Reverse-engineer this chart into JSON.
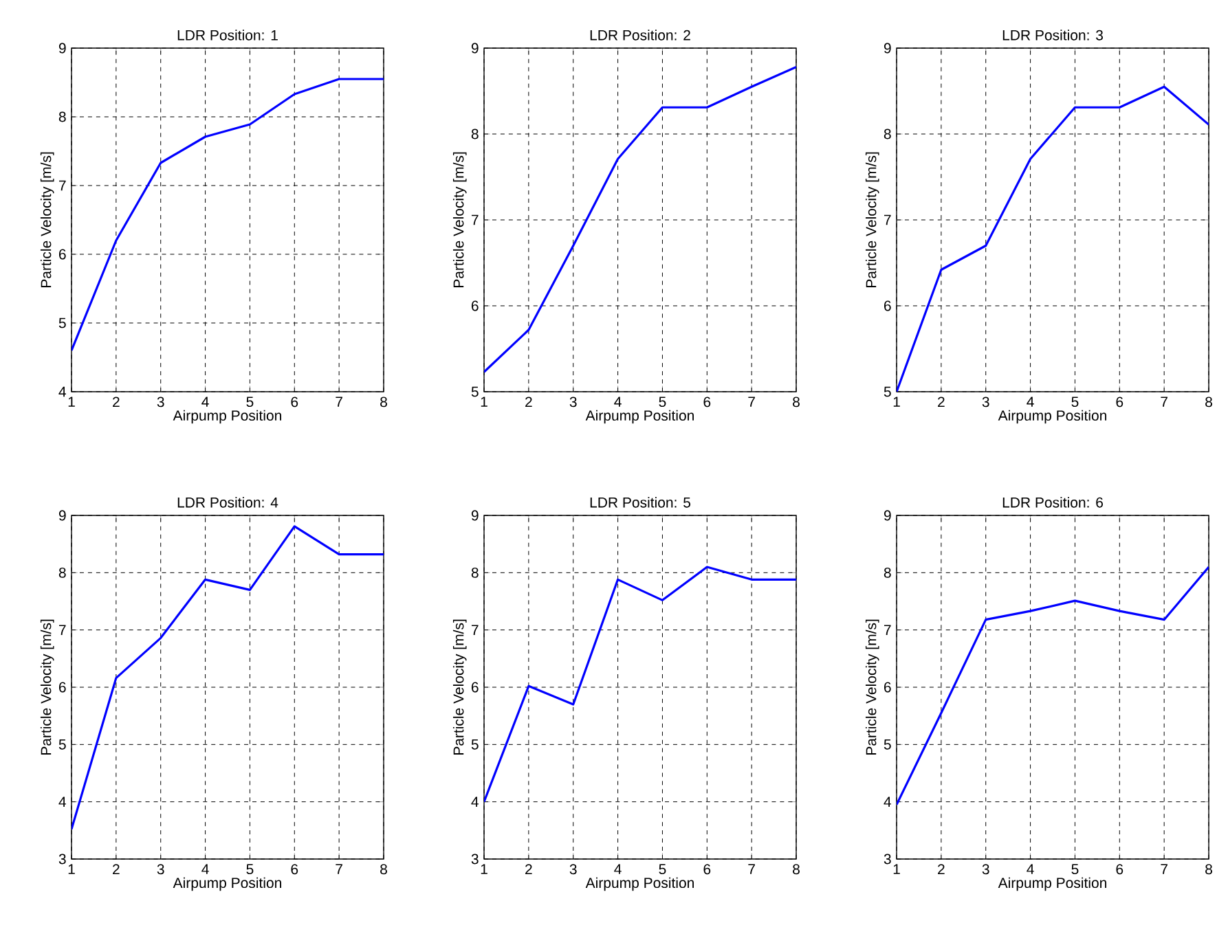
{
  "chart_data": [
    {
      "type": "line",
      "title": "LDR Position: 1",
      "xlabel": "Airpump Position",
      "ylabel": "Particle Velocity [m/s]",
      "x": [
        1,
        2,
        3,
        4,
        5,
        6,
        7,
        8
      ],
      "values": [
        4.6,
        6.2,
        7.33,
        7.71,
        7.89,
        8.33,
        8.55,
        8.55
      ],
      "color": "#0000ff",
      "xlim": [
        1,
        8
      ],
      "ylim": [
        4,
        9
      ],
      "xticks": [
        1,
        2,
        3,
        4,
        5,
        6,
        7,
        8
      ],
      "yticks": [
        4,
        5,
        6,
        7,
        8,
        9
      ],
      "grid": true
    },
    {
      "type": "line",
      "title": "LDR Position: 2",
      "xlabel": "Airpump Position",
      "ylabel": "Particle Velocity [m/s]",
      "x": [
        1,
        2,
        3,
        4,
        5,
        6,
        7,
        8
      ],
      "values": [
        5.23,
        5.72,
        6.7,
        7.71,
        8.31,
        8.31,
        8.55,
        8.78
      ],
      "color": "#0000ff",
      "xlim": [
        1,
        8
      ],
      "ylim": [
        5,
        9
      ],
      "xticks": [
        1,
        2,
        3,
        4,
        5,
        6,
        7,
        8
      ],
      "yticks": [
        5,
        6,
        7,
        8,
        9
      ],
      "grid": true
    },
    {
      "type": "line",
      "title": "LDR Position: 3",
      "xlabel": "Airpump Position",
      "ylabel": "Particle Velocity [m/s]",
      "x": [
        1,
        2,
        3,
        4,
        5,
        6,
        7,
        8
      ],
      "values": [
        5.0,
        6.42,
        6.7,
        7.71,
        8.31,
        8.31,
        8.55,
        8.11
      ],
      "color": "#0000ff",
      "xlim": [
        1,
        8
      ],
      "ylim": [
        5,
        9
      ],
      "xticks": [
        1,
        2,
        3,
        4,
        5,
        6,
        7,
        8
      ],
      "yticks": [
        5,
        6,
        7,
        8,
        9
      ],
      "grid": true
    },
    {
      "type": "line",
      "title": "LDR Position: 4",
      "xlabel": "Airpump Position",
      "ylabel": "Particle Velocity [m/s]",
      "x": [
        1,
        2,
        3,
        4,
        5,
        6,
        7,
        8
      ],
      "values": [
        3.52,
        6.16,
        6.86,
        7.88,
        7.7,
        8.81,
        8.32,
        8.32
      ],
      "color": "#0000ff",
      "xlim": [
        1,
        8
      ],
      "ylim": [
        3,
        9
      ],
      "xticks": [
        1,
        2,
        3,
        4,
        5,
        6,
        7,
        8
      ],
      "yticks": [
        3,
        4,
        5,
        6,
        7,
        8,
        9
      ],
      "grid": true
    },
    {
      "type": "line",
      "title": "LDR Position: 5",
      "xlabel": "Airpump Position",
      "ylabel": "Particle Velocity [m/s]",
      "x": [
        1,
        2,
        3,
        4,
        5,
        6,
        7,
        8
      ],
      "values": [
        4.0,
        6.02,
        5.7,
        7.88,
        7.52,
        8.1,
        7.88,
        7.88
      ],
      "color": "#0000ff",
      "xlim": [
        1,
        8
      ],
      "ylim": [
        3,
        9
      ],
      "xticks": [
        1,
        2,
        3,
        4,
        5,
        6,
        7,
        8
      ],
      "yticks": [
        3,
        4,
        5,
        6,
        7,
        8,
        9
      ],
      "grid": true
    },
    {
      "type": "line",
      "title": "LDR Position: 6",
      "xlabel": "Airpump Position",
      "ylabel": "Particle Velocity [m/s]",
      "x": [
        1,
        2,
        3,
        4,
        5,
        6,
        7,
        8
      ],
      "values": [
        3.95,
        5.55,
        7.18,
        7.33,
        7.51,
        7.33,
        7.18,
        8.1
      ],
      "color": "#0000ff",
      "xlim": [
        1,
        8
      ],
      "ylim": [
        3,
        9
      ],
      "xticks": [
        1,
        2,
        3,
        4,
        5,
        6,
        7,
        8
      ],
      "yticks": [
        3,
        4,
        5,
        6,
        7,
        8,
        9
      ],
      "grid": true
    }
  ]
}
